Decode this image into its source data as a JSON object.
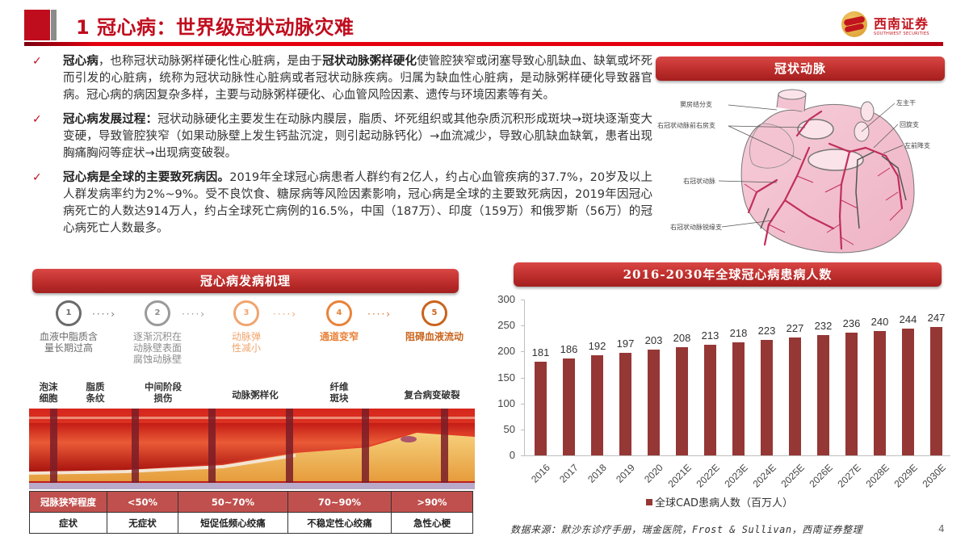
{
  "header": {
    "title": "1 冠心病：世界级冠状动脉灾难",
    "logo": {
      "name_cn": "西南证券",
      "name_en": "SOUTHWEST SECURITIES",
      "icon": "southwest-securities-logo-icon"
    }
  },
  "bullets": [
    {
      "icon": "checkmark-icon",
      "segments": [
        {
          "text": "冠心病",
          "bold": true
        },
        {
          "text": "，也称冠状动脉粥样硬化性心脏病，是由于",
          "bold": false
        },
        {
          "text": "冠状动脉粥样硬化",
          "bold": true
        },
        {
          "text": "使管腔狭窄或闭塞导致心肌缺血、缺氧或坏死而引发的心脏病，统称为冠状动脉性心脏病或者冠状动脉疾病。归属为缺血性心脏病，是动脉粥样硬化导致器官病。冠心病的病因复杂多样，主要与动脉粥样硬化、心血管风险因素、遗传与环境因素等有关。",
          "bold": false
        }
      ]
    },
    {
      "icon": "checkmark-icon",
      "segments": [
        {
          "text": "冠心病发展过程：",
          "bold": true
        },
        {
          "text": "冠状动脉硬化主要发生在动脉内膜层，脂质、坏死组织或其他杂质沉积形成斑块→斑块逐渐变大变硬，导致管腔狭窄（如果动脉壁上发生钙盐沉淀，则引起动脉钙化）→血流减少，导致心肌缺血缺氧，患者出现胸痛胸闷等症状→出现病变破裂。",
          "bold": false
        }
      ]
    },
    {
      "icon": "checkmark-icon",
      "segments": [
        {
          "text": "冠心病是全球的主要致死病因。",
          "bold": true
        },
        {
          "text": "2019年全球冠心病患者人群约有2亿人，约占心血管疾病的37.7%，20岁及以上人群发病率约为2%~9%。受不良饮食、糖尿病等风险因素影响，冠心病是全球的主要致死病因，2019年因冠心病死亡的人数达914万人，约占全球死亡病例的16.5%，中国（187万）、印度（159万）和俄罗斯（56万）的冠心病死亡人数最多。",
          "bold": false
        }
      ]
    }
  ],
  "heart_panel": {
    "title": "冠状动脉",
    "labels": {
      "sinus_node": "窦房结分支",
      "right_conus": "右冠状动脉前右房支",
      "rca": "右冠状动脉",
      "rca_marginal": "右冠状动脉锐缘支",
      "left_main": "左主干",
      "circumflex": "回旋支",
      "lad": "左前降支"
    }
  },
  "mechanism": {
    "title": "冠心病发病机理",
    "steps": [
      {
        "num": "1",
        "text": "血液中脂质含\n量长期过高",
        "color": "#6b6b6b"
      },
      {
        "num": "2",
        "text": "逐渐沉积在\n动脉壁表面\n腐蚀动脉壁",
        "color": "#8c8c8c"
      },
      {
        "num": "3",
        "text": "动脉弹\n性减小",
        "color": "#f0a56e"
      },
      {
        "num": "4",
        "text": "通道变窄",
        "color": "#e8833a"
      },
      {
        "num": "5",
        "text": "阻碍血液流动",
        "color": "#c9641c"
      }
    ],
    "artery_stages": [
      {
        "text": "泡沫\n细胞"
      },
      {
        "text": "脂质\n条纹"
      },
      {
        "text": "中间阶段\n损伤"
      },
      {
        "text": "动脉粥样化"
      },
      {
        "text": "纤维\n斑块"
      },
      {
        "text": "复合病变破裂"
      }
    ],
    "table": {
      "header": [
        "冠脉狭窄程度",
        "<50%",
        "50~70%",
        "70~90%",
        ">90%"
      ],
      "row": [
        "症状",
        "无症状",
        "短促低频心绞痛",
        "不稳定性心绞痛",
        "急性心梗"
      ]
    }
  },
  "chart_panel": {
    "title": "2016-2030年全球冠心病患病人数"
  },
  "chart_data": {
    "type": "bar",
    "title": "2016-2030年全球冠心病患病人数",
    "categories": [
      "2016",
      "2017",
      "2018",
      "2019",
      "2020",
      "2021E",
      "2022E",
      "2023E",
      "2024E",
      "2025E",
      "2026E",
      "2027E",
      "2028E",
      "2029E",
      "2030E"
    ],
    "series": [
      {
        "name": "全球CAD患病人数（百万人）",
        "values": [
          181,
          186,
          192,
          197,
          203,
          208,
          213,
          218,
          223,
          227,
          232,
          236,
          240,
          244,
          247
        ],
        "color": "#953735"
      }
    ],
    "yticks": [
      "0",
      "50",
      "100",
      "150",
      "200",
      "250",
      "300"
    ],
    "ylim": [
      0,
      300
    ],
    "xlabel": "",
    "ylabel": "",
    "grid": false,
    "legend_position": "bottom",
    "data_labels": true
  },
  "footer": {
    "source": "数据来源：默沙东诊疗手册，瑞金医院，Frost & Sullivan，西南证券整理",
    "page": "4"
  }
}
